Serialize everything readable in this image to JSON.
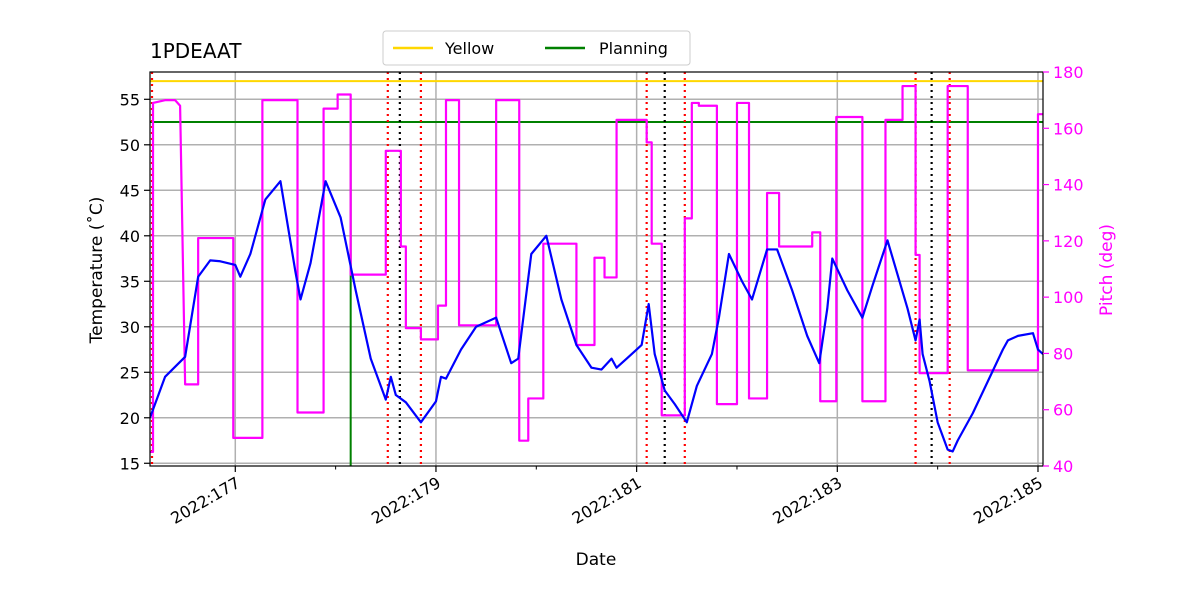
{
  "chart_data": {
    "type": "line",
    "title": "1PDEAAT",
    "xlabel": "Date",
    "ylabel_left": "Temperature ($^\\circ$C)",
    "ylabel_left_display": "Temperature (˚C)",
    "ylabel_right": "Pitch (deg)",
    "x_unit": "day-of-year 2022",
    "xlim": [
      176.15,
      185.05
    ],
    "ylim_left": [
      14.7,
      58.0
    ],
    "ylim_right": [
      40,
      180
    ],
    "x_ticks": [
      177,
      179,
      181,
      183,
      185
    ],
    "x_tick_labels": [
      "2022:177",
      "2022:179",
      "2022:181",
      "2022:183",
      "2022:185"
    ],
    "y_ticks_left": [
      15,
      20,
      25,
      30,
      35,
      40,
      45,
      50,
      55
    ],
    "y_tick_labels_left": [
      "15",
      "20",
      "25",
      "30",
      "35",
      "40",
      "45",
      "50",
      "55"
    ],
    "y_ticks_right": [
      40,
      60,
      80,
      100,
      120,
      140,
      160,
      180
    ],
    "y_tick_labels_right": [
      "40",
      "60",
      "80",
      "100",
      "120",
      "140",
      "160",
      "180"
    ],
    "grid": true,
    "legend_position": "top-center",
    "legend": [
      {
        "name": "Yellow",
        "color": "#ffd700"
      },
      {
        "name": "Planning",
        "color": "#008000"
      }
    ],
    "limits": [
      {
        "name": "Yellow",
        "value": 57.0,
        "color": "#ffd700"
      },
      {
        "name": "Planning",
        "value": 52.5,
        "color": "#008000"
      }
    ],
    "planning_vertical_x": 178.15,
    "vlines_red": [
      176.17,
      178.52,
      178.85,
      181.1,
      181.48,
      183.78,
      184.12
    ],
    "vlines_black": [
      178.64,
      181.28,
      183.94
    ],
    "series": [
      {
        "name": "Temperature",
        "axis": "left",
        "color": "#0000ff",
        "x": [
          176.15,
          176.3,
          176.5,
          176.63,
          176.75,
          176.85,
          177.0,
          177.05,
          177.15,
          177.3,
          177.45,
          177.6,
          177.65,
          177.75,
          177.9,
          178.05,
          178.2,
          178.35,
          178.5,
          178.55,
          178.6,
          178.7,
          178.85,
          179.0,
          179.05,
          179.1,
          179.25,
          179.4,
          179.6,
          179.75,
          179.82,
          179.95,
          180.1,
          180.25,
          180.4,
          180.55,
          180.65,
          180.75,
          180.8,
          180.9,
          181.0,
          181.05,
          181.12,
          181.18,
          181.28,
          181.38,
          181.5,
          181.6,
          181.75,
          181.82,
          181.92,
          182.05,
          182.15,
          182.3,
          182.4,
          182.55,
          182.7,
          182.82,
          182.9,
          182.95,
          183.1,
          183.25,
          183.35,
          183.5,
          183.7,
          183.78,
          183.82,
          183.85,
          183.92,
          184.0,
          184.1,
          184.15,
          184.2,
          184.35,
          184.5,
          184.65,
          184.7,
          184.8,
          184.95,
          185.0,
          185.05
        ],
        "y": [
          20.0,
          24.5,
          26.7,
          35.5,
          37.3,
          37.2,
          36.8,
          35.5,
          38.0,
          44.0,
          46.0,
          36.0,
          33.0,
          37.0,
          46.0,
          42.0,
          34.0,
          26.5,
          22.0,
          24.5,
          22.5,
          21.7,
          19.5,
          21.8,
          24.5,
          24.3,
          27.5,
          30.0,
          31.0,
          26.0,
          26.5,
          38.0,
          40.0,
          33.0,
          28.0,
          25.5,
          25.3,
          26.5,
          25.5,
          26.5,
          27.5,
          28.0,
          32.5,
          27.0,
          23.0,
          21.5,
          19.5,
          23.5,
          27.0,
          31.0,
          38.0,
          35.0,
          33.0,
          38.5,
          38.5,
          34.0,
          29.0,
          26.0,
          32.0,
          37.5,
          34.0,
          31.0,
          34.5,
          39.5,
          32.0,
          28.5,
          30.8,
          27.0,
          24.0,
          19.5,
          16.5,
          16.3,
          17.5,
          20.5,
          24.0,
          27.5,
          28.5,
          29.0,
          29.3,
          27.5,
          27.0
        ]
      },
      {
        "name": "Pitch",
        "axis": "right",
        "color": "#ff00ff",
        "x": [
          176.15,
          176.18,
          176.18,
          176.3,
          176.4,
          176.45,
          176.45,
          176.5,
          176.5,
          176.63,
          176.63,
          176.63,
          176.98,
          176.98,
          177.27,
          177.27,
          177.62,
          177.62,
          177.88,
          177.88,
          178.02,
          178.02,
          178.05,
          178.05,
          178.15,
          178.15,
          178.5,
          178.5,
          178.65,
          178.65,
          178.7,
          178.7,
          178.85,
          178.85,
          179.02,
          179.02,
          179.1,
          179.1,
          179.23,
          179.23,
          179.6,
          179.6,
          179.83,
          179.83,
          179.92,
          179.92,
          180.07,
          180.07,
          180.4,
          180.4,
          180.58,
          180.58,
          180.68,
          180.68,
          180.8,
          180.8,
          181.1,
          181.1,
          181.15,
          181.15,
          181.25,
          181.25,
          181.32,
          181.32,
          181.48,
          181.48,
          181.55,
          181.55,
          181.62,
          181.62,
          181.8,
          181.8,
          182.0,
          182.0,
          182.12,
          182.12,
          182.3,
          182.3,
          182.42,
          182.42,
          182.75,
          182.75,
          182.83,
          182.83,
          182.99,
          182.99,
          183.25,
          183.25,
          183.48,
          183.48,
          183.65,
          183.65,
          183.78,
          183.78,
          183.82,
          183.82,
          183.9,
          183.9,
          184.1,
          184.1,
          184.3,
          184.3,
          184.65,
          184.65,
          185.0,
          185.0,
          185.05
        ],
        "y": [
          45,
          45,
          169,
          170,
          170,
          168,
          168,
          69,
          69,
          69,
          69,
          121,
          121,
          50,
          50,
          170,
          170,
          59,
          59,
          167,
          167,
          172,
          172,
          172,
          172,
          108,
          108,
          152,
          152,
          118,
          118,
          89,
          89,
          85,
          85,
          97,
          97,
          170,
          170,
          90,
          90,
          170,
          170,
          49,
          49,
          64,
          64,
          119,
          119,
          83,
          83,
          114,
          114,
          107,
          107,
          163,
          163,
          155,
          155,
          119,
          119,
          58,
          58,
          58,
          58,
          128,
          128,
          169,
          169,
          168,
          168,
          62,
          62,
          169,
          169,
          64,
          64,
          137,
          137,
          118,
          118,
          123,
          123,
          63,
          63,
          164,
          164,
          63,
          63,
          163,
          163,
          175,
          175,
          115,
          115,
          73,
          73,
          73,
          73,
          175,
          175,
          74,
          74,
          74,
          74,
          165,
          165
        ]
      }
    ]
  }
}
